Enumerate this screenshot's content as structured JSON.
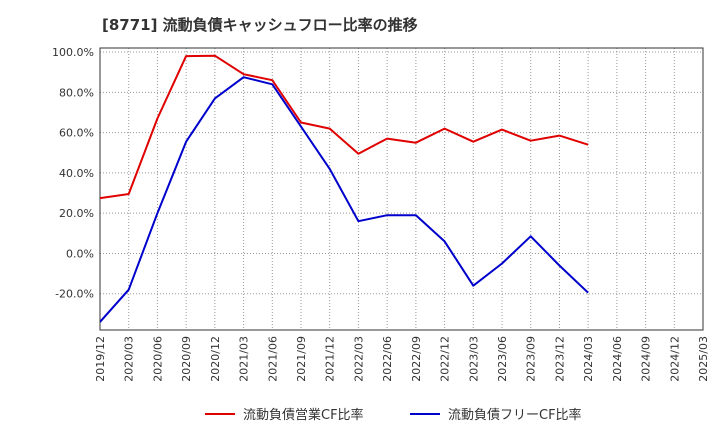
{
  "chart_data": {
    "type": "line",
    "title": "[8771]  流動負債キャッシュフロー比率の推移",
    "xlabel": "",
    "ylabel": "",
    "ylim": [
      -38,
      102
    ],
    "y_ticks": [
      100,
      80,
      60,
      40,
      20,
      0,
      -20
    ],
    "y_tick_labels": [
      "100.0%",
      "80.0%",
      "60.0%",
      "40.0%",
      "20.0%",
      "0.0%",
      "-20.0%"
    ],
    "grid": true,
    "legend_position": "bottom",
    "categories": [
      "2019/12",
      "2020/03",
      "2020/06",
      "2020/09",
      "2020/12",
      "2021/03",
      "2021/06",
      "2021/09",
      "2021/12",
      "2022/03",
      "2022/06",
      "2022/09",
      "2022/12",
      "2023/03",
      "2023/06",
      "2023/09",
      "2023/12",
      "2024/03",
      "2024/06",
      "2024/09",
      "2024/12",
      "2025/03"
    ],
    "series": [
      {
        "name": "流動負債営業CF比率",
        "color": "#e00000",
        "values": [
          27.5,
          29.5,
          67.0,
          98.0,
          98.2,
          89.0,
          86.0,
          65.0,
          62.0,
          49.5,
          57.0,
          55.0,
          62.0,
          55.5,
          61.5,
          56.0,
          58.5,
          54.0,
          null,
          null,
          null,
          null
        ]
      },
      {
        "name": "流動負債フリーCF比率",
        "color": "#0000cc",
        "values": [
          -34.0,
          -18.0,
          20.0,
          55.5,
          77.0,
          87.5,
          84.0,
          63.0,
          42.0,
          16.0,
          19.0,
          19.0,
          6.0,
          -16.0,
          -5.0,
          8.5,
          -6.0,
          -19.5,
          null,
          null,
          null,
          null
        ]
      }
    ]
  }
}
